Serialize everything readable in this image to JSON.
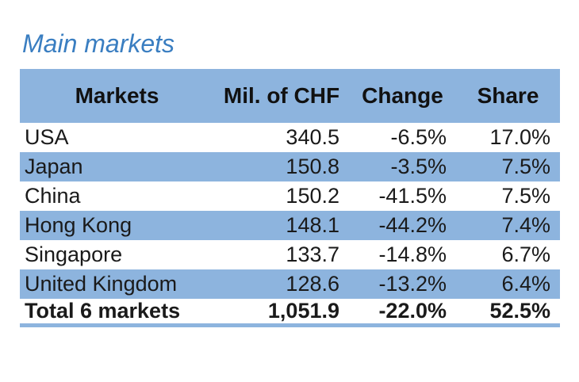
{
  "title": "Main markets",
  "colors": {
    "accent_blue": "#8db4de",
    "title_blue": "#3a7ec1",
    "text": "#1a1a1a"
  },
  "chart_data": {
    "type": "table",
    "title": "Main markets",
    "columns": [
      "Markets",
      "Mil. of CHF",
      "Change",
      "Share"
    ],
    "rows": [
      {
        "market": "USA",
        "mil_of_chf": "340.5",
        "change": "-6.5%",
        "share": "17.0%"
      },
      {
        "market": "Japan",
        "mil_of_chf": "150.8",
        "change": "-3.5%",
        "share": "7.5%"
      },
      {
        "market": "China",
        "mil_of_chf": "150.2",
        "change": "-41.5%",
        "share": "7.5%"
      },
      {
        "market": "Hong Kong",
        "mil_of_chf": "148.1",
        "change": "-44.2%",
        "share": "7.4%"
      },
      {
        "market": "Singapore",
        "mil_of_chf": "133.7",
        "change": "-14.8%",
        "share": "6.7%"
      },
      {
        "market": "United Kingdom",
        "mil_of_chf": "128.6",
        "change": "-13.2%",
        "share": "6.4%"
      }
    ],
    "total_row": {
      "market": "Total 6 markets",
      "mil_of_chf": "1,051.9",
      "change": "-22.0%",
      "share": "52.5%"
    },
    "layout": {
      "banded_rows": true,
      "header_align": "center",
      "number_align": "right",
      "market_align": "left"
    }
  }
}
